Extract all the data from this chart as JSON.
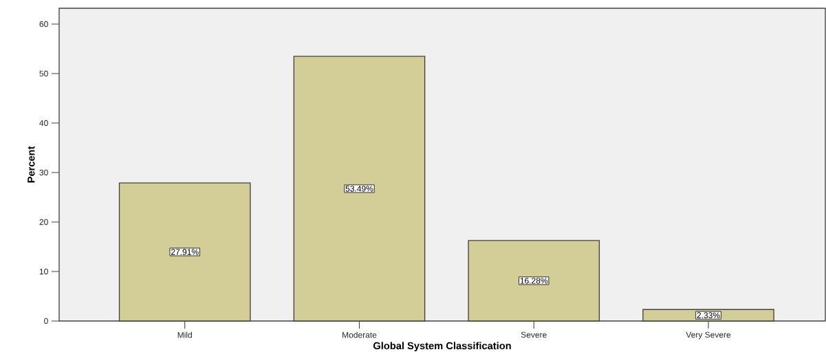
{
  "chart_data": {
    "type": "bar",
    "xlabel": "Global System Classification",
    "ylabel": "Percent",
    "categories": [
      "Mild",
      "Moderate",
      "Severe",
      "Very Severe"
    ],
    "values": [
      27.91,
      53.49,
      16.28,
      2.33
    ],
    "value_labels": [
      "27.91%",
      "53.49%",
      "16.28%",
      "2.33%"
    ],
    "color": "#d3cd97",
    "ylim": [
      0,
      63.2
    ],
    "yticks": [
      0,
      10,
      20,
      30,
      40,
      50,
      60
    ],
    "grid": false
  }
}
